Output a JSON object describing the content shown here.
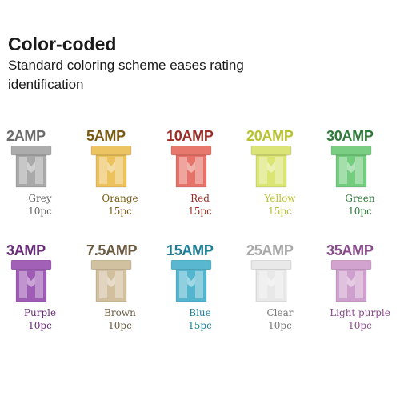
{
  "headline": "Color-coded",
  "subtitle": "Standard coloring scheme eases rating identification",
  "fuses": [
    {
      "amp": "2AMP",
      "color_name": "Grey",
      "qty": "10pc",
      "label_color": "#6b6b6b",
      "text_color": "#666666",
      "body_color": "#9a9a9a"
    },
    {
      "amp": "5AMP",
      "color_name": "Orange",
      "qty": "15pc",
      "label_color": "#7a5a10",
      "text_color": "#7a5a10",
      "body_color": "#e9b740"
    },
    {
      "amp": "10AMP",
      "color_name": "Red",
      "qty": "15pc",
      "label_color": "#9c2e27",
      "text_color": "#9c2e27",
      "body_color": "#e25b4f"
    },
    {
      "amp": "20AMP",
      "color_name": "Yellow",
      "qty": "15pc",
      "label_color": "#b8c22e",
      "text_color": "#b8c22e",
      "body_color": "#d4e05a"
    },
    {
      "amp": "30AMP",
      "color_name": "Green",
      "qty": "10pc",
      "label_color": "#2f7a3a",
      "text_color": "#2f7a3a",
      "body_color": "#5cc468"
    },
    {
      "amp": "3AMP",
      "color_name": "Purple",
      "qty": "10pc",
      "label_color": "#6a2a7a",
      "text_color": "#6a2a7a",
      "body_color": "#8e3fa8"
    },
    {
      "amp": "7.5AMP",
      "color_name": "Brown",
      "qty": "10pc",
      "label_color": "#6b5a40",
      "text_color": "#6b5a40",
      "body_color": "#c9b48c"
    },
    {
      "amp": "15AMP",
      "color_name": "Blue",
      "qty": "15pc",
      "label_color": "#1d7f96",
      "text_color": "#1d7f96",
      "body_color": "#35a9c6"
    },
    {
      "amp": "25AMP",
      "color_name": "Clear",
      "qty": "10pc",
      "label_color": "#a8a8a8",
      "text_color": "#777777",
      "body_color": "#e4e4e4"
    },
    {
      "amp": "35AMP",
      "color_name": "Light purple",
      "qty": "10pc",
      "label_color": "#8a4b8c",
      "text_color": "#8a4b8c",
      "body_color": "#c78fc4"
    }
  ]
}
